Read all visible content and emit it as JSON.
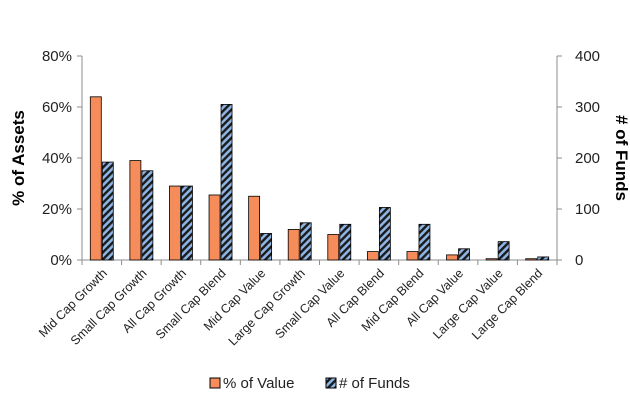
{
  "chart_data": {
    "type": "bar",
    "title": "",
    "categories": [
      "Mid Cap Growth",
      "Small Cap Growth",
      "All Cap Growth",
      "Small Cap Blend",
      "Mid Cap Value",
      "Large Cap Growth",
      "Small Cap Value",
      "All Cap Blend",
      "Mid Cap Blend",
      "All Cap Value",
      "Large Cap Value",
      "Large Cap Blend"
    ],
    "series": [
      {
        "name": "% of Value",
        "axis": "left",
        "color": "#F58C5A",
        "values": [
          64,
          39,
          29,
          25.5,
          25,
          12,
          10,
          3.3,
          3.3,
          2,
          0.5,
          0.5
        ]
      },
      {
        "name": "# of Funds",
        "axis": "right",
        "color": "#8EB4E3",
        "pattern": "hatched",
        "values": [
          192,
          175,
          145,
          305,
          52,
          73,
          70,
          103,
          70,
          22,
          36,
          6
        ]
      }
    ],
    "y_left": {
      "label": "% of Assets",
      "range": [
        0,
        80
      ],
      "ticks": [
        "0%",
        "20%",
        "40%",
        "60%",
        "80%"
      ]
    },
    "y_right": {
      "label": "# of Funds",
      "range": [
        0,
        400
      ],
      "ticks": [
        "0",
        "100",
        "200",
        "300",
        "400"
      ]
    },
    "grid": false,
    "legend_position": "bottom"
  }
}
